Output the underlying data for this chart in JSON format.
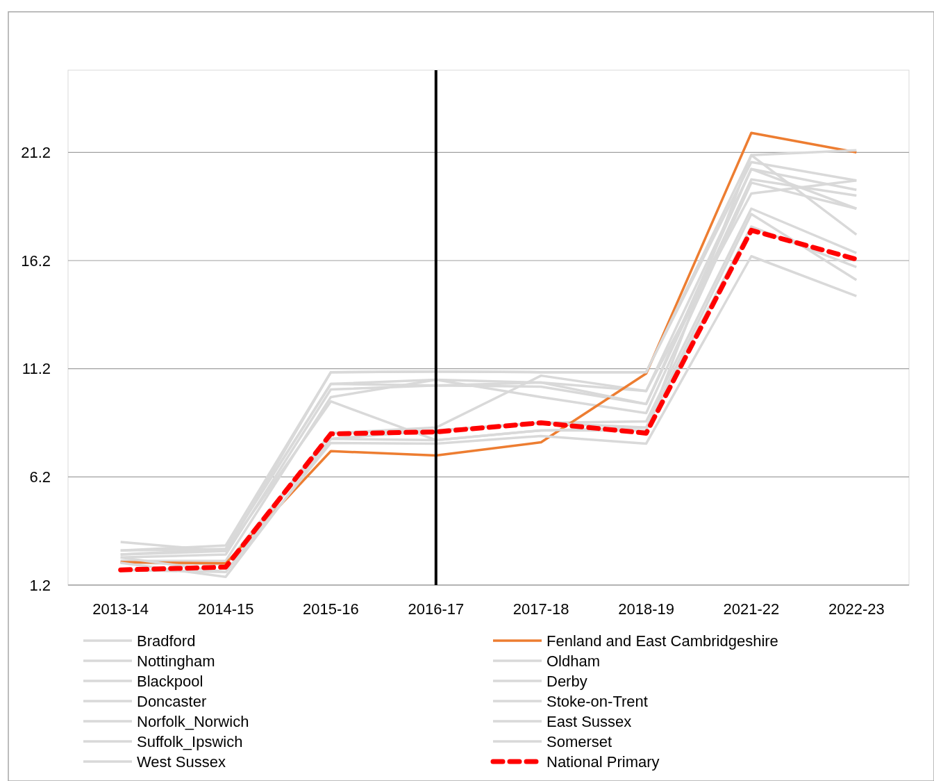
{
  "chart_data": {
    "type": "line",
    "categories": [
      "2013-14",
      "2014-15",
      "2015-16",
      "2016-17",
      "2017-18",
      "2018-19",
      "2021-22",
      "2022-23"
    ],
    "ylim": [
      1.2,
      25
    ],
    "yticks": [
      1.2,
      6.2,
      11.2,
      16.2,
      21.2
    ],
    "grid": "y",
    "legend": "bottom",
    "line_style": "solid",
    "marker": "none",
    "ref_lines": [
      {
        "axis": "x",
        "value": "2016-17",
        "color": "#000000"
      }
    ],
    "series": [
      {
        "name": "Bradford",
        "color": "#d9d9d9",
        "values": [
          3.19,
          2.77,
          9.69,
          7.9,
          8.35,
          8.35,
          21.07,
          17.4
        ]
      },
      {
        "name": "Nottingham",
        "color": "#d9d9d9",
        "values": [
          2.8,
          3.03,
          11.04,
          11.07,
          11.04,
          11.04,
          20.75,
          19.9
        ]
      },
      {
        "name": "Blackpool",
        "color": "#d9d9d9",
        "values": [
          2.61,
          2.87,
          10.5,
          10.69,
          10.56,
          10.17,
          20.43,
          19.47
        ]
      },
      {
        "name": "Doncaster",
        "color": "#d9d9d9",
        "values": [
          2.48,
          2.61,
          10.24,
          10.43,
          10.37,
          9.57,
          19.95,
          19.2
        ]
      },
      {
        "name": "Norfolk_Norwich",
        "color": "#d9d9d9",
        "values": [
          2.32,
          2.32,
          9.89,
          10.69,
          9.89,
          9.15,
          19.8,
          18.6
        ]
      },
      {
        "name": "Suffolk_Ipswich",
        "color": "#d9d9d9",
        "values": [
          2.23,
          2.16,
          8.22,
          8.48,
          10.88,
          10.17,
          19.3,
          19.9
        ]
      },
      {
        "name": "West Sussex",
        "color": "#d9d9d9",
        "values": [
          2.32,
          2.16,
          7.96,
          8.35,
          8.7,
          8.76,
          18.6,
          16.55
        ]
      },
      {
        "name": "Fenland and East Cambridgeshire",
        "color": "#ed7d31",
        "values": [
          2.26,
          2.2,
          7.39,
          7.19,
          7.8,
          10.98,
          22.1,
          21.2
        ]
      },
      {
        "name": "Oldham",
        "color": "#d9d9d9",
        "values": [
          2.48,
          1.8,
          7.77,
          7.74,
          8.09,
          7.74,
          16.4,
          14.56
        ]
      },
      {
        "name": "Derby",
        "color": "#d9d9d9",
        "values": [
          2.23,
          1.58,
          7.96,
          7.9,
          8.35,
          8.48,
          18.35,
          15.3
        ]
      },
      {
        "name": "Stoke-on-Trent",
        "color": "#d9d9d9",
        "values": [
          1.9,
          1.8,
          8.22,
          8.35,
          8.7,
          8.48,
          17.77,
          15.9
        ]
      },
      {
        "name": "East Sussex",
        "color": "#d9d9d9",
        "values": [
          2.61,
          2.77,
          11.04,
          11.07,
          11.04,
          11.04,
          21.07,
          21.3
        ]
      },
      {
        "name": "Somerset",
        "color": "#d9d9d9",
        "values": [
          2.8,
          2.87,
          10.5,
          10.43,
          10.56,
          9.57,
          20.43,
          18.6
        ]
      },
      {
        "name": "National Primary",
        "color": "#ff0000",
        "line_style": "dashed",
        "values": [
          1.9,
          2.03,
          8.19,
          8.28,
          8.7,
          8.22,
          17.6,
          16.26
        ]
      }
    ]
  }
}
